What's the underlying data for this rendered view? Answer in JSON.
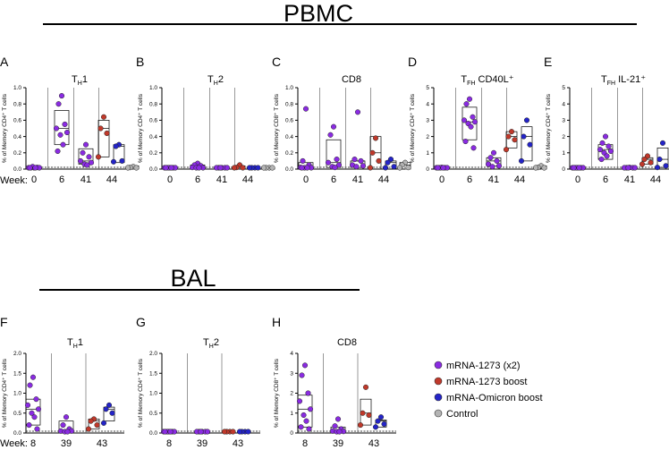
{
  "sections": {
    "pbmc": {
      "title": "PBMC",
      "week_label": "Week:",
      "weeks": [
        "0",
        "6",
        "41",
        "44"
      ]
    },
    "bal": {
      "title": "BAL",
      "week_label": "Week:",
      "weeks": [
        "8",
        "39",
        "43"
      ]
    }
  },
  "legend": [
    {
      "label": "mRNA-1273 (x2)",
      "color": "#8a2be2"
    },
    {
      "label": "mRNA-1273 boost",
      "color": "#c0392b"
    },
    {
      "label": "mRNA-Omicron boost",
      "color": "#2424c8"
    },
    {
      "label": "Control",
      "color": "#b4b4b4"
    }
  ],
  "chart_data": [
    {
      "type": "scatter",
      "section": "pbmc",
      "letter": "A",
      "title_main": "T",
      "title_sub": "H",
      "title_post": "1",
      "ylabel": "% of Memory CD4⁺ T cells",
      "ylim": [
        0,
        1.0
      ],
      "ticks": [
        "0.0",
        "0.2",
        "0.4",
        "0.6",
        "0.8",
        "1.0"
      ],
      "groups": [
        {
          "week": "0",
          "series": "mRNA-1273 (x2)",
          "values": [
            0.0,
            0.01,
            0.02,
            0.0,
            0.01,
            0.03,
            0.0,
            0.01
          ],
          "box": [
            0.0,
            0.03
          ]
        },
        {
          "week": "6",
          "series": "mRNA-1273 (x2)",
          "values": [
            0.9,
            0.8,
            0.55,
            0.5,
            0.45,
            0.42,
            0.3,
            0.22
          ],
          "box": [
            0.3,
            0.72
          ]
        },
        {
          "week": "41",
          "series": "mRNA-1273 (x2)",
          "values": [
            0.3,
            0.2,
            0.15,
            0.1,
            0.08,
            0.06,
            0.05
          ],
          "box": [
            0.06,
            0.25
          ]
        },
        {
          "week": "44",
          "series": "mRNA-1273 boost",
          "values": [
            0.64,
            0.5,
            0.44,
            0.15
          ],
          "box": [
            0.15,
            0.6
          ]
        },
        {
          "week": "44",
          "series": "mRNA-Omicron boost",
          "values": [
            0.3,
            0.28,
            0.1,
            0.09
          ],
          "box": [
            0.08,
            0.3
          ]
        },
        {
          "week": "44",
          "series": "Control",
          "values": [
            0.03,
            0.02,
            0.0,
            0.0
          ],
          "box": [
            0.0,
            0.04
          ]
        }
      ]
    },
    {
      "type": "scatter",
      "section": "pbmc",
      "letter": "B",
      "title_main": "T",
      "title_sub": "H",
      "title_post": "2",
      "ylabel": "% of Memory CD4⁺ T cells",
      "ylim": [
        0,
        1.0
      ],
      "ticks": [
        "0.0",
        "0.2",
        "0.4",
        "0.6",
        "0.8",
        "1.0"
      ],
      "groups": [
        {
          "week": "0",
          "series": "mRNA-1273 (x2)",
          "values": [
            0.0,
            0.0,
            0.01,
            0.0,
            0.01,
            0.0,
            0.0,
            0.0
          ],
          "box": [
            0.0,
            0.01
          ]
        },
        {
          "week": "6",
          "series": "mRNA-1273 (x2)",
          "values": [
            0.07,
            0.05,
            0.04,
            0.02,
            0.01,
            0.0,
            0.0
          ],
          "box": [
            0.0,
            0.05
          ]
        },
        {
          "week": "41",
          "series": "mRNA-1273 (x2)",
          "values": [
            0.01,
            0.01,
            0.0,
            0.0,
            0.0,
            0.0
          ],
          "box": [
            0.0,
            0.01
          ]
        },
        {
          "week": "44",
          "series": "mRNA-1273 boost",
          "values": [
            0.05,
            0.02,
            0.01,
            0.0
          ],
          "box": [
            0.0,
            0.04
          ]
        },
        {
          "week": "44",
          "series": "mRNA-Omicron boost",
          "values": [
            0.01,
            0.01,
            0.0,
            0.0
          ],
          "box": [
            0.0,
            0.01
          ]
        },
        {
          "week": "44",
          "series": "Control",
          "values": [
            0.01,
            0.0,
            0.0,
            0.0
          ],
          "box": [
            0.0,
            0.01
          ]
        }
      ]
    },
    {
      "type": "scatter",
      "section": "pbmc",
      "letter": "C",
      "title_main": "CD8",
      "title_sub": "",
      "title_post": "",
      "ylabel": "% of Memory CD8⁺ T cells",
      "ylim": [
        0,
        1.0
      ],
      "ticks": [
        "0.0",
        "0.2",
        "0.4",
        "0.6",
        "0.8",
        "1.0"
      ],
      "groups": [
        {
          "week": "0",
          "series": "mRNA-1273 (x2)",
          "values": [
            0.74,
            0.1,
            0.05,
            0.02,
            0.0,
            0.0,
            0.0,
            0.0
          ],
          "box": [
            0.0,
            0.08
          ]
        },
        {
          "week": "6",
          "series": "mRNA-1273 (x2)",
          "values": [
            0.52,
            0.42,
            0.12,
            0.08,
            0.05,
            0.03,
            0.02
          ],
          "box": [
            0.02,
            0.36
          ]
        },
        {
          "week": "41",
          "series": "mRNA-1273 (x2)",
          "values": [
            0.7,
            0.12,
            0.1,
            0.05,
            0.04,
            0.03
          ],
          "box": [
            0.02,
            0.1
          ]
        },
        {
          "week": "44",
          "series": "mRNA-1273 boost",
          "values": [
            0.38,
            0.2,
            0.1,
            0.0
          ],
          "box": [
            0.0,
            0.4
          ]
        },
        {
          "week": "44",
          "series": "mRNA-Omicron boost",
          "values": [
            0.12,
            0.08,
            0.03,
            0.0
          ],
          "box": [
            0.0,
            0.1
          ]
        },
        {
          "week": "44",
          "series": "Control",
          "values": [
            0.08,
            0.05,
            0.02,
            0.0
          ],
          "box": [
            0.0,
            0.08
          ]
        }
      ]
    },
    {
      "type": "scatter",
      "section": "pbmc",
      "letter": "D",
      "title_main": "T",
      "title_sub": "FH",
      "title_post": " CD40L⁺",
      "ylabel": "% of Memory CD4⁺ T cells",
      "ylim": [
        0,
        5
      ],
      "ticks": [
        "0",
        "1",
        "2",
        "3",
        "4",
        "5"
      ],
      "groups": [
        {
          "week": "0",
          "series": "mRNA-1273 (x2)",
          "values": [
            0.1,
            0.05,
            0.02,
            0.0,
            0.0,
            0.0,
            0.0,
            0.0
          ],
          "box": [
            0.0,
            0.05
          ]
        },
        {
          "week": "6",
          "series": "mRNA-1273 (x2)",
          "values": [
            4.3,
            4.0,
            3.2,
            3.0,
            2.9,
            2.8,
            2.6,
            1.7,
            1.3
          ],
          "box": [
            1.8,
            3.8
          ]
        },
        {
          "week": "41",
          "series": "mRNA-1273 (x2)",
          "values": [
            1.0,
            0.7,
            0.5,
            0.3,
            0.2,
            0.15
          ],
          "box": [
            0.2,
            0.7
          ]
        },
        {
          "week": "44",
          "series": "mRNA-1273 boost",
          "values": [
            2.3,
            2.0,
            1.8,
            1.2
          ],
          "box": [
            1.3,
            2.3
          ]
        },
        {
          "week": "44",
          "series": "mRNA-Omicron boost",
          "values": [
            3.0,
            2.0,
            1.5,
            0.5
          ],
          "box": [
            0.5,
            2.6
          ]
        },
        {
          "week": "44",
          "series": "Control",
          "values": [
            0.2,
            0.1,
            0.05,
            0.0
          ],
          "box": [
            0.0,
            0.2
          ]
        }
      ]
    },
    {
      "type": "scatter",
      "section": "pbmc",
      "letter": "E",
      "title_main": "T",
      "title_sub": "FH",
      "title_post": " IL-21⁺",
      "ylabel": "% of Memory CD4⁺ T cells",
      "ylim": [
        0,
        5
      ],
      "ticks": [
        "0",
        "1",
        "2",
        "3",
        "4",
        "5"
      ],
      "groups": [
        {
          "week": "0",
          "series": "mRNA-1273 (x2)",
          "values": [
            0.05,
            0.02,
            0.0,
            0.0,
            0.0,
            0.0,
            0.0,
            0.0
          ],
          "box": [
            0.0,
            0.03
          ]
        },
        {
          "week": "6",
          "series": "mRNA-1273 (x2)",
          "values": [
            2.0,
            1.6,
            1.4,
            1.2,
            1.1,
            1.0,
            0.8,
            0.6
          ],
          "box": [
            0.6,
            1.5
          ]
        },
        {
          "week": "41",
          "series": "mRNA-1273 (x2)",
          "values": [
            0.1,
            0.05,
            0.02,
            0.0,
            0.0,
            0.0
          ],
          "box": [
            0.0,
            0.05
          ]
        },
        {
          "week": "44",
          "series": "mRNA-1273 boost",
          "values": [
            0.8,
            0.6,
            0.4,
            0.3
          ],
          "box": [
            0.3,
            0.7
          ]
        },
        {
          "week": "44",
          "series": "mRNA-Omicron boost",
          "values": [
            1.6,
            0.6,
            0.2,
            0.1
          ],
          "box": [
            0.1,
            1.3
          ]
        },
        {
          "week": "44",
          "series": "Control",
          "values": [
            0.1,
            0.05,
            0.0,
            0.0
          ],
          "box": [
            0.0,
            0.1
          ]
        }
      ]
    },
    {
      "type": "scatter",
      "section": "bal",
      "letter": "F",
      "title_main": "T",
      "title_sub": "H",
      "title_post": "1",
      "ylabel": "% of Memory CD4⁺ T cells",
      "ylim": [
        0,
        2.0
      ],
      "ticks": [
        "0.0",
        "0.5",
        "1.0",
        "1.5",
        "2.0"
      ],
      "groups": [
        {
          "week": "8",
          "series": "mRNA-1273 (x2)",
          "values": [
            1.4,
            1.2,
            0.85,
            0.7,
            0.6,
            0.5,
            0.4,
            0.2,
            0.1
          ],
          "box": [
            0.2,
            0.85
          ]
        },
        {
          "week": "39",
          "series": "mRNA-1273 (x2)",
          "values": [
            0.4,
            0.2,
            0.1,
            0.05,
            0.05,
            0.02,
            0.02
          ],
          "box": [
            0.02,
            0.3
          ]
        },
        {
          "week": "43",
          "series": "mRNA-1273 boost",
          "values": [
            0.35,
            0.3,
            0.2,
            0.1
          ],
          "box": [
            0.1,
            0.35
          ]
        },
        {
          "week": "43",
          "series": "mRNA-Omicron boost",
          "values": [
            0.7,
            0.6,
            0.5,
            0.25
          ],
          "box": [
            0.3,
            0.65
          ]
        }
      ]
    },
    {
      "type": "scatter",
      "section": "bal",
      "letter": "G",
      "title_main": "T",
      "title_sub": "H",
      "title_post": "2",
      "ylabel": "% of Memory CD4⁺ T cells",
      "ylim": [
        0,
        2.0
      ],
      "ticks": [
        "0.0",
        "0.5",
        "1.0",
        "1.5",
        "2.0"
      ],
      "groups": [
        {
          "week": "8",
          "series": "mRNA-1273 (x2)",
          "values": [
            0.03,
            0.02,
            0.01,
            0.0,
            0.0,
            0.0,
            0.0,
            0.0
          ],
          "box": [
            0.0,
            0.02
          ]
        },
        {
          "week": "39",
          "series": "mRNA-1273 (x2)",
          "values": [
            0.02,
            0.01,
            0.0,
            0.0,
            0.0,
            0.0
          ],
          "box": [
            0.0,
            0.01
          ]
        },
        {
          "week": "43",
          "series": "mRNA-1273 boost",
          "values": [
            0.02,
            0.01,
            0.0,
            0.0
          ],
          "box": [
            0.0,
            0.02
          ]
        },
        {
          "week": "43",
          "series": "mRNA-Omicron boost",
          "values": [
            0.02,
            0.01,
            0.0,
            0.0
          ],
          "box": [
            0.0,
            0.02
          ]
        }
      ]
    },
    {
      "type": "scatter",
      "section": "bal",
      "letter": "H",
      "title_main": "CD8",
      "title_sub": "",
      "title_post": "",
      "ylabel": "% of Memory CD8⁺ T cells",
      "ylim": [
        0,
        4
      ],
      "ticks": [
        "0",
        "1",
        "2",
        "3",
        "4"
      ],
      "groups": [
        {
          "week": "8",
          "series": "mRNA-1273 (x2)",
          "values": [
            3.4,
            2.9,
            2.0,
            1.6,
            1.2,
            0.9,
            0.6,
            0.3,
            0.2
          ],
          "box": [
            0.3,
            1.9
          ]
        },
        {
          "week": "39",
          "series": "mRNA-1273 (x2)",
          "values": [
            0.7,
            0.35,
            0.2,
            0.1,
            0.08,
            0.05,
            0.03
          ],
          "box": [
            0.05,
            0.3
          ]
        },
        {
          "week": "43",
          "series": "mRNA-1273 boost",
          "values": [
            2.3,
            1.0,
            0.9,
            0.4
          ],
          "box": [
            0.4,
            1.7
          ]
        },
        {
          "week": "43",
          "series": "mRNA-Omicron boost",
          "values": [
            0.8,
            0.6,
            0.45,
            0.3
          ],
          "box": [
            0.3,
            0.65
          ]
        }
      ]
    }
  ]
}
